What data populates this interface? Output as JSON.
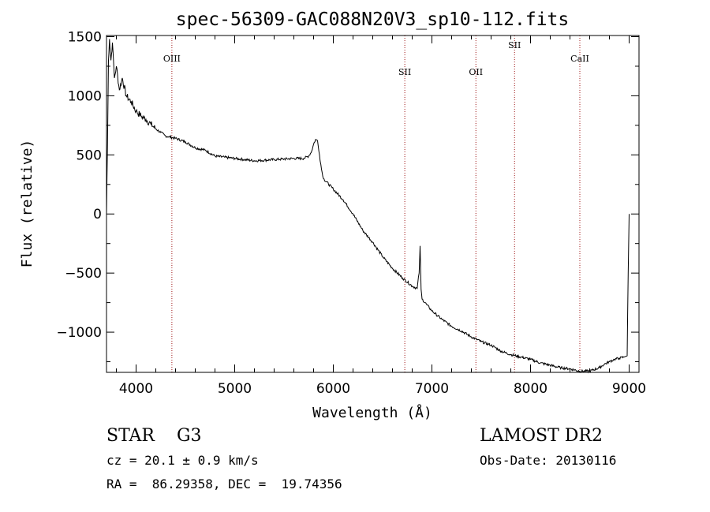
{
  "chart_data": {
    "type": "line",
    "title": "spec-56309-GAC088N20V3_sp10-112.fits",
    "xlabel": "Wavelength (Å)",
    "ylabel": "Flux (relative)",
    "xlim": [
      3700,
      9100
    ],
    "ylim": [
      -1340,
      1510
    ],
    "xticks": [
      4000,
      5000,
      6000,
      7000,
      8000,
      9000
    ],
    "yticks": [
      -1000,
      -500,
      0,
      500,
      1000,
      1500
    ],
    "xtick_labels": [
      "4000",
      "5000",
      "6000",
      "7000",
      "8000",
      "9000"
    ],
    "ytick_labels": [
      "−1000",
      "−500",
      "0",
      "500",
      "1000",
      "1500"
    ],
    "grid": false,
    "series": [
      {
        "line_color": "#000000",
        "x": [
          3700,
          3710,
          3720,
          3730,
          3745,
          3760,
          3780,
          3800,
          3830,
          3860,
          3900,
          3950,
          4000,
          4050,
          4100,
          4150,
          4200,
          4250,
          4300,
          4400,
          4500,
          4600,
          4700,
          4800,
          4900,
          5000,
          5100,
          5200,
          5300,
          5400,
          5500,
          5600,
          5700,
          5750,
          5780,
          5800,
          5820,
          5840,
          5860,
          5880,
          5900,
          6000,
          6100,
          6200,
          6300,
          6400,
          6500,
          6600,
          6700,
          6800,
          6850,
          6870,
          6880,
          6890,
          6900,
          6950,
          7000,
          7100,
          7200,
          7300,
          7400,
          7500,
          7600,
          7700,
          7800,
          7900,
          8000,
          8100,
          8200,
          8300,
          8400,
          8500,
          8600,
          8700,
          8750,
          8800,
          8850,
          8900,
          8950,
          8980,
          8990,
          9000
        ],
        "y": [
          0,
          600,
          1300,
          1480,
          1300,
          1450,
          1150,
          1250,
          1050,
          1150,
          1000,
          950,
          870,
          830,
          800,
          760,
          720,
          690,
          660,
          640,
          610,
          560,
          540,
          490,
          480,
          470,
          460,
          450,
          455,
          460,
          465,
          470,
          470,
          490,
          530,
          590,
          630,
          620,
          500,
          380,
          300,
          210,
          120,
          0,
          -140,
          -240,
          -360,
          -460,
          -540,
          -610,
          -630,
          -500,
          -270,
          -640,
          -720,
          -770,
          -820,
          -890,
          -950,
          -990,
          -1040,
          -1080,
          -1110,
          -1160,
          -1190,
          -1210,
          -1230,
          -1260,
          -1280,
          -1300,
          -1310,
          -1330,
          -1330,
          -1300,
          -1270,
          -1250,
          -1230,
          -1220,
          -1210,
          -1200,
          -500,
          0
        ]
      }
    ],
    "lines": [
      {
        "label": "OIII",
        "x": 4363,
        "color": "#a01818"
      },
      {
        "label": "SII",
        "x": 6725,
        "color": "#a01818"
      },
      {
        "label": "OII",
        "x": 7446,
        "color": "#a01818"
      },
      {
        "label": "SII",
        "x": 7838,
        "color": "#a01818"
      },
      {
        "label": "CaII",
        "x": 8500,
        "color": "#a01818"
      }
    ]
  },
  "info": {
    "class_line": "STAR    G3",
    "cz_line": "cz = 20.1 ± 0.9 km/s",
    "radec_line": "RA =  86.29358, DEC =  19.74356",
    "survey": "LAMOST DR2",
    "obs_date": "Obs-Date: 20130116"
  }
}
